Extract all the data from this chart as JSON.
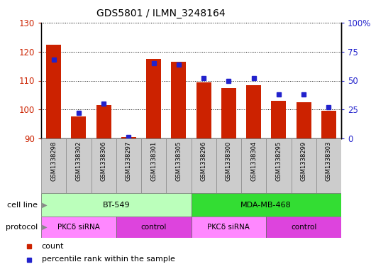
{
  "title": "GDS5801 / ILMN_3248164",
  "samples": [
    "GSM1338298",
    "GSM1338302",
    "GSM1338306",
    "GSM1338297",
    "GSM1338301",
    "GSM1338305",
    "GSM1338296",
    "GSM1338300",
    "GSM1338304",
    "GSM1338295",
    "GSM1338299",
    "GSM1338303"
  ],
  "counts": [
    122.5,
    97.5,
    101.5,
    90.5,
    117.5,
    116.5,
    109.5,
    107.5,
    108.5,
    103.0,
    102.5,
    99.5
  ],
  "percentiles": [
    68,
    22,
    30,
    1,
    65,
    64,
    52,
    50,
    52,
    38,
    38,
    27
  ],
  "ylim_left": [
    90,
    130
  ],
  "ylim_right": [
    0,
    100
  ],
  "yticks_left": [
    90,
    100,
    110,
    120,
    130
  ],
  "yticks_right": [
    0,
    25,
    50,
    75,
    100
  ],
  "ytick_labels_right": [
    "0",
    "25",
    "50",
    "75",
    "100%"
  ],
  "bar_color": "#CC2200",
  "dot_color": "#2222CC",
  "bar_bottom": 90,
  "cell_line_groups": [
    {
      "label": "BT-549",
      "start": 0,
      "end": 6,
      "color": "#bbffbb"
    },
    {
      "label": "MDA-MB-468",
      "start": 6,
      "end": 12,
      "color": "#33dd33"
    }
  ],
  "protocol_groups": [
    {
      "label": "PKCδ siRNA",
      "start": 0,
      "end": 3,
      "color": "#ff88ff"
    },
    {
      "label": "control",
      "start": 3,
      "end": 6,
      "color": "#dd44dd"
    },
    {
      "label": "PKCδ siRNA",
      "start": 6,
      "end": 9,
      "color": "#ff88ff"
    },
    {
      "label": "control",
      "start": 9,
      "end": 12,
      "color": "#dd44dd"
    }
  ],
  "cell_line_label": "cell line",
  "protocol_label": "protocol",
  "legend_count_label": "count",
  "legend_percentile_label": "percentile rank within the sample",
  "tick_label_color_left": "#CC2200",
  "tick_label_color_right": "#2222CC",
  "arrow_color": "#888888",
  "xticklabel_bg": "#cccccc",
  "xticklabel_edge": "#888888"
}
